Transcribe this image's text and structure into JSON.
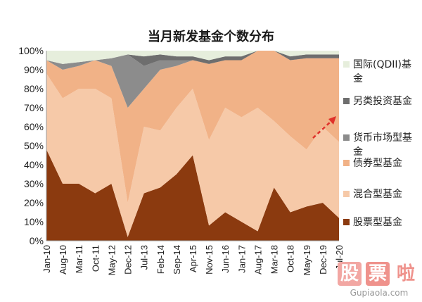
{
  "chart_data": {
    "type": "area",
    "stacked": "percent",
    "title": "当月新发基金个数分布",
    "x": [
      "Jan-10",
      "Aug-10",
      "Mar-11",
      "Oct-11",
      "May-12",
      "Dec-12",
      "Jul-13",
      "Feb-14",
      "Sep-14",
      "Apr-15",
      "Nov-15",
      "Jun-16",
      "Jan-17",
      "Aug-17",
      "Mar-18",
      "Oct-18",
      "May-19",
      "Dec-19",
      "Jul-20"
    ],
    "ylim": [
      0,
      100
    ],
    "yticks": [
      "0%",
      "10%",
      "20%",
      "30%",
      "40%",
      "50%",
      "60%",
      "70%",
      "80%",
      "90%",
      "100%"
    ],
    "series": [
      {
        "name": "股票型基金",
        "color": "#8b3a0f",
        "values": [
          48,
          30,
          30,
          25,
          30,
          2,
          25,
          28,
          35,
          45,
          8,
          15,
          10,
          5,
          28,
          15,
          18,
          20,
          12
        ]
      },
      {
        "name": "混合型基金",
        "color": "#f6c9a8",
        "values": [
          40,
          45,
          50,
          55,
          45,
          18,
          35,
          30,
          35,
          35,
          45,
          55,
          55,
          65,
          35,
          40,
          30,
          40,
          40
        ]
      },
      {
        "name": "债券型基金",
        "color": "#f1b287",
        "values": [
          7,
          15,
          12,
          15,
          17,
          50,
          20,
          32,
          22,
          15,
          40,
          25,
          30,
          30,
          37,
          40,
          48,
          36,
          44
        ]
      },
      {
        "name": "货币市场型基金",
        "color": "#8c8c8c",
        "values": [
          0,
          3,
          2,
          0,
          4,
          28,
          12,
          5,
          3,
          0,
          0,
          0,
          0,
          0,
          0,
          0,
          0,
          0,
          0
        ]
      },
      {
        "name": "另类投资基金",
        "color": "#6e6e6e",
        "values": [
          0,
          0,
          0,
          0,
          0,
          0,
          5,
          3,
          2,
          2,
          2,
          2,
          2,
          0,
          0,
          2,
          2,
          2,
          2
        ]
      },
      {
        "name": "国际(QDII)基金",
        "color": "#e6eedc",
        "values": [
          5,
          7,
          6,
          5,
          4,
          2,
          3,
          2,
          3,
          3,
          5,
          3,
          3,
          0,
          0,
          3,
          2,
          2,
          2
        ]
      }
    ],
    "annotation": {
      "type": "arrow",
      "color": "#e0312a",
      "style": "dashed",
      "meaning": "rising trend"
    }
  },
  "legend_order": [
    5,
    4,
    3,
    2,
    1,
    0
  ],
  "watermark": {
    "chars": [
      "股",
      "票",
      "啦"
    ],
    "domain": "Gupiaola.com",
    "colors": [
      "#f2a7a3",
      "#ef928c",
      "#e8c7c3"
    ]
  }
}
